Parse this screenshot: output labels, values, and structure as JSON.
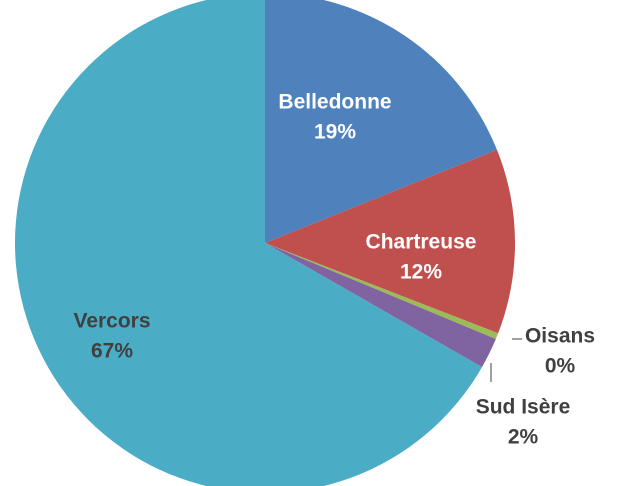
{
  "chart_data": {
    "type": "pie",
    "categories": [
      "Belledonne",
      "Chartreuse",
      "Oisans",
      "Sud Isère",
      "Vercors"
    ],
    "values": [
      19,
      12,
      0.4,
      2,
      67
    ],
    "value_labels": [
      "19%",
      "12%",
      "0%",
      "2%",
      "67%"
    ],
    "colors": [
      "#4f81bd",
      "#c0504d",
      "#9bbb59",
      "#8064a2",
      "#4bacc6"
    ]
  }
}
